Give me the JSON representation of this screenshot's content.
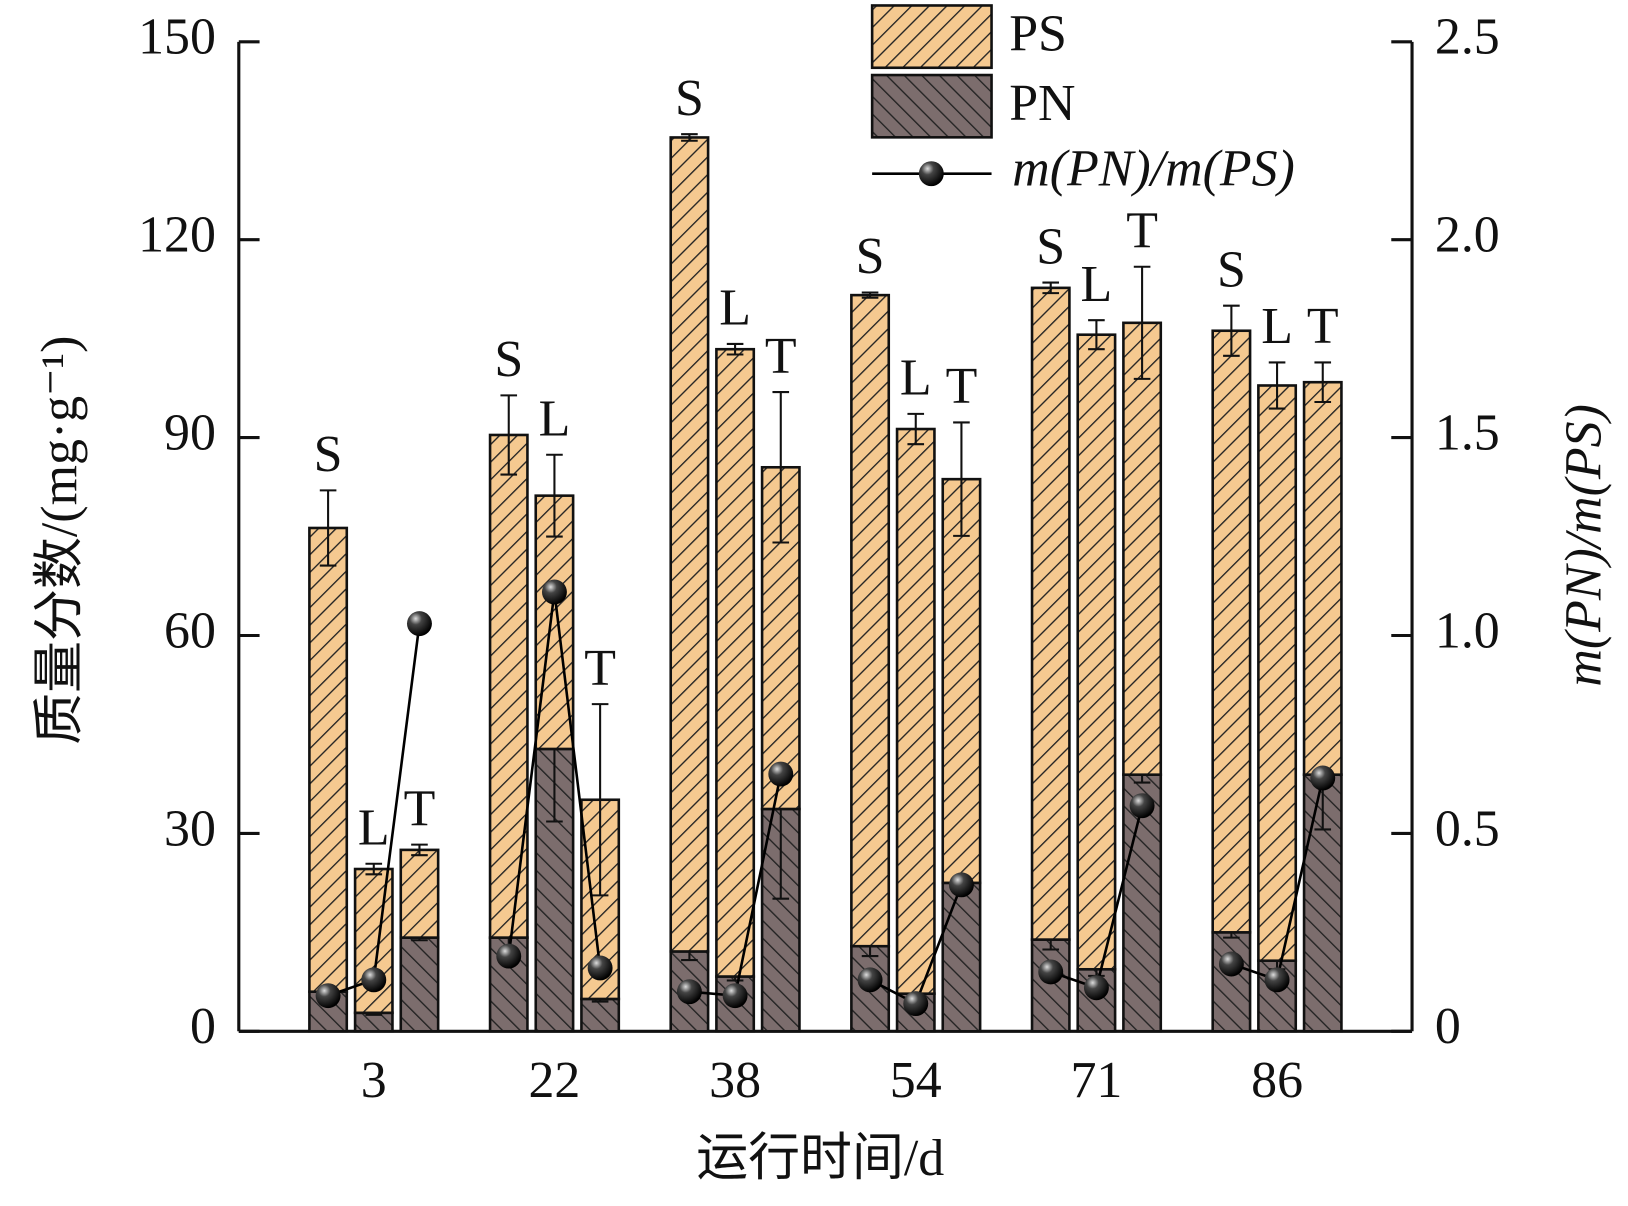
{
  "chart_data": {
    "type": "bar",
    "stacked": true,
    "groups": [
      "3",
      "22",
      "38",
      "54",
      "71",
      "86"
    ],
    "categories": [
      "S",
      "L",
      "T",
      "S",
      "L",
      "T",
      "S",
      "L",
      "T",
      "S",
      "L",
      "T",
      "S",
      "L",
      "T",
      "S",
      "L",
      "T"
    ],
    "series": [
      {
        "name": "PN",
        "color": "#7c6d6d",
        "values": [
          6,
          2.8,
          14.2,
          14.2,
          42.8,
          4.9,
          12.1,
          8.3,
          33.7,
          12.9,
          5.7,
          22.5,
          13.9,
          9.4,
          38.9,
          15,
          10.7,
          38.9
        ],
        "errors": [
          0.5,
          0.3,
          0.4,
          4,
          11,
          0.4,
          1.3,
          0.6,
          13.6,
          1.5,
          0.6,
          0.5,
          1.5,
          1,
          1.2,
          0.8,
          1.3,
          8.3
        ]
      },
      {
        "name": "PS",
        "color": "#f5c990",
        "values": [
          70.3,
          21.8,
          13.3,
          76.2,
          38.4,
          30.2,
          123.4,
          95.1,
          51.8,
          98.7,
          85.6,
          61.2,
          98.8,
          96.2,
          68.5,
          91.2,
          87.2,
          59.5
        ],
        "errors": [
          5.7,
          0.8,
          0.8,
          6,
          6.2,
          14.5,
          0.5,
          0.8,
          11.4,
          0.4,
          2.3,
          8.6,
          0.8,
          2.2,
          8.5,
          3.8,
          3.5,
          3
        ]
      },
      {
        "name": "m(PN)/m(PS)",
        "type": "line",
        "axis": "y2",
        "color": "#000000",
        "values": [
          0.09,
          0.13,
          1.03,
          0.19,
          1.11,
          0.16,
          0.1,
          0.09,
          0.65,
          0.13,
          0.07,
          0.37,
          0.15,
          0.11,
          0.57,
          0.17,
          0.13,
          0.64
        ]
      }
    ],
    "xlabel": "运行时间/d",
    "ylabel": "质量分数/(mg·g⁻¹)",
    "y2label": "m(PN)/m(PS)",
    "ylim": [
      0,
      150
    ],
    "yticks": [
      0,
      30,
      60,
      90,
      120,
      150
    ],
    "y2lim": [
      0,
      2.5
    ],
    "y2ticks": [
      0,
      0.5,
      {
        "value": 1,
        "label": "1.0"
      },
      1.5,
      {
        "value": 2,
        "label": "2.0"
      },
      2.5
    ],
    "legend": "top-right"
  }
}
